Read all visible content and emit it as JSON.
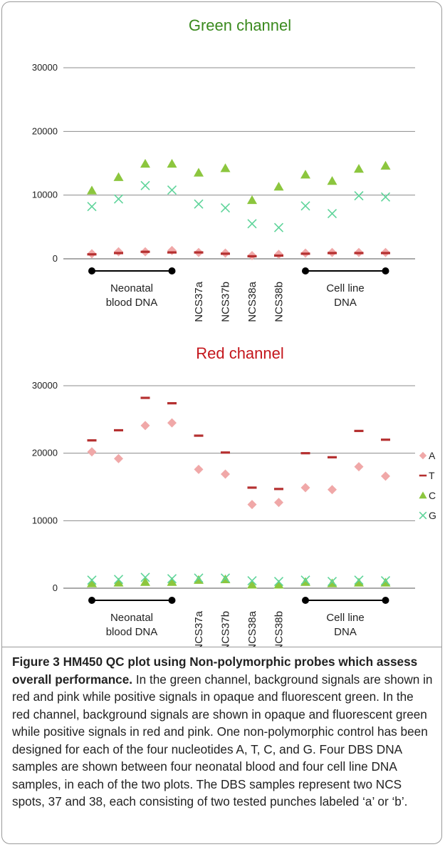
{
  "colors": {
    "green_title": "#3a8a1e",
    "red_title": "#c4161c",
    "A": "#f0a8a8",
    "T": "#b53030",
    "C": "#8cc63e",
    "G": "#5ed49a"
  },
  "legend": [
    {
      "key": "A",
      "label": "A",
      "marker": "diamond"
    },
    {
      "key": "T",
      "label": "T",
      "marker": "dash"
    },
    {
      "key": "C",
      "label": "C",
      "marker": "triangle"
    },
    {
      "key": "G",
      "label": "G",
      "marker": "x"
    }
  ],
  "groups": {
    "neonatal_line1": "Neonatal",
    "neonatal_line2": "blood DNA",
    "cell_line1": "Cell line",
    "cell_line2": "DNA",
    "ncs_labels": [
      "NCS37a",
      "NCS37b",
      "NCS38a",
      "NCS38b"
    ]
  },
  "chart_data": [
    {
      "type": "scatter",
      "title": "Green channel",
      "xlabel": "",
      "ylabel": "",
      "ylim": [
        0,
        30000
      ],
      "yticks": [
        "0",
        "10000",
        "20000",
        "30000"
      ],
      "grid": true,
      "x": [
        1,
        2,
        3,
        4,
        5,
        6,
        7,
        8,
        9,
        10,
        11,
        12
      ],
      "series": [
        {
          "name": "A",
          "values": [
            800,
            1100,
            1100,
            1300,
            1000,
            900,
            500,
            700,
            900,
            1000,
            1000,
            1000
          ]
        },
        {
          "name": "T",
          "values": [
            700,
            900,
            1100,
            1000,
            1000,
            800,
            400,
            500,
            800,
            900,
            900,
            900
          ]
        },
        {
          "name": "C",
          "values": [
            10700,
            12800,
            14900,
            14900,
            13500,
            14200,
            9200,
            11300,
            13200,
            12200,
            14100,
            14600
          ]
        },
        {
          "name": "G",
          "values": [
            8200,
            9400,
            11500,
            10800,
            8600,
            8000,
            5500,
            4900,
            8300,
            7100,
            9900,
            9700
          ]
        }
      ]
    },
    {
      "type": "scatter",
      "title": "Red channel",
      "xlabel": "",
      "ylabel": "",
      "ylim": [
        0,
        30000
      ],
      "yticks": [
        "0",
        "10000",
        "20000",
        "30000"
      ],
      "grid": true,
      "legend": "right",
      "x": [
        1,
        2,
        3,
        4,
        5,
        6,
        7,
        8,
        9,
        10,
        11,
        12
      ],
      "series": [
        {
          "name": "A",
          "values": [
            20200,
            19200,
            24100,
            24500,
            17600,
            16900,
            12400,
            12700,
            14900,
            14600,
            18000,
            16600
          ]
        },
        {
          "name": "T",
          "values": [
            21900,
            23400,
            28200,
            27400,
            22600,
            20100,
            14900,
            14700,
            20000,
            19400,
            23300,
            22000
          ]
        },
        {
          "name": "C",
          "values": [
            700,
            800,
            900,
            900,
            1200,
            1300,
            500,
            500,
            900,
            700,
            800,
            800
          ]
        },
        {
          "name": "G",
          "values": [
            1200,
            1300,
            1600,
            1400,
            1500,
            1500,
            1100,
            1000,
            1200,
            1000,
            1200,
            1100
          ]
        }
      ]
    }
  ],
  "caption": {
    "bold": "Figure 3 HM450 QC plot using Non-polymorphic probes which assess overall performance.",
    "text": " In the green channel, background signals are shown in red and pink while positive signals in opaque and fluorescent green. In the red channel, background signals are shown in opaque and fluorescent green while positive signals in red and pink. One non-polymorphic control has been designed for each of the four nucleotides A, T, C, and G. Four DBS DNA samples are shown between four neonatal blood and four cell line DNA samples, in each of the two plots. The DBS samples represent two NCS spots, 37 and 38, each consisting of two tested punches labeled ‘a’ or ‘b’."
  }
}
